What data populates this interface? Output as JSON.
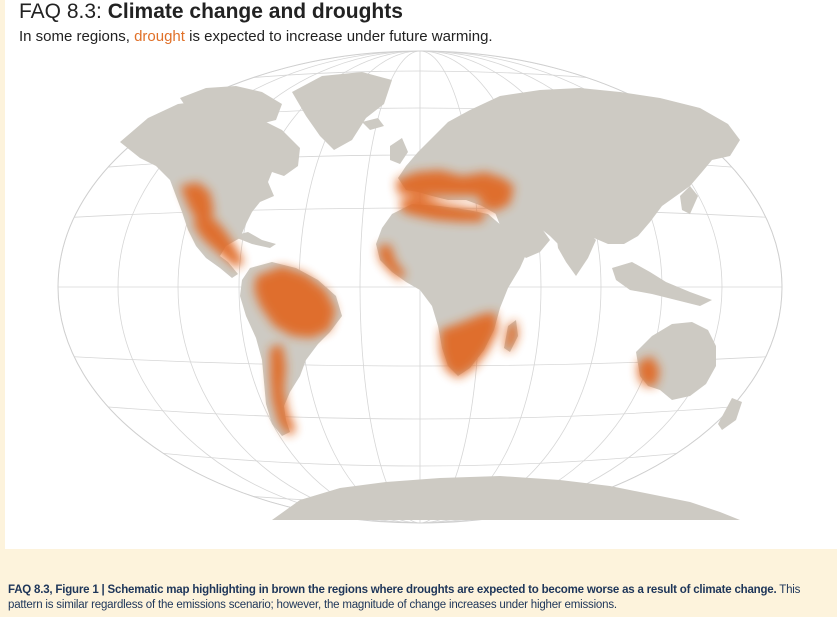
{
  "title": {
    "number": "FAQ 8.3:",
    "text": "Climate change and droughts"
  },
  "subtitle": {
    "before": "In some regions, ",
    "highlight": "drought",
    "after": " is expected to increase under future warming."
  },
  "caption": {
    "bold": "FAQ 8.3, Figure 1 | Schematic map highlighting in brown the regions where droughts are expected to become worse as a result of climate change.",
    "normal": " This pattern is similar regardless of the emissions scenario; however, the magnitude of change increases under higher emissions."
  },
  "colors": {
    "land": "#cdcac3",
    "drought": "#e06a25",
    "grid": "#d8d8d8",
    "caption_text": "#1d3559",
    "caption_bg": "#fdf3dc",
    "highlight_text": "#e07028"
  },
  "map": {
    "projection": "Winkel tripel",
    "drought_regions": [
      "western-north-america",
      "mexico-central-america",
      "amazon-brazil",
      "chile-patagonia",
      "mediterranean-europe",
      "north-africa",
      "middle-east-turkey",
      "west-africa-coast",
      "southern-africa",
      "madagascar",
      "southwest-australia"
    ]
  }
}
